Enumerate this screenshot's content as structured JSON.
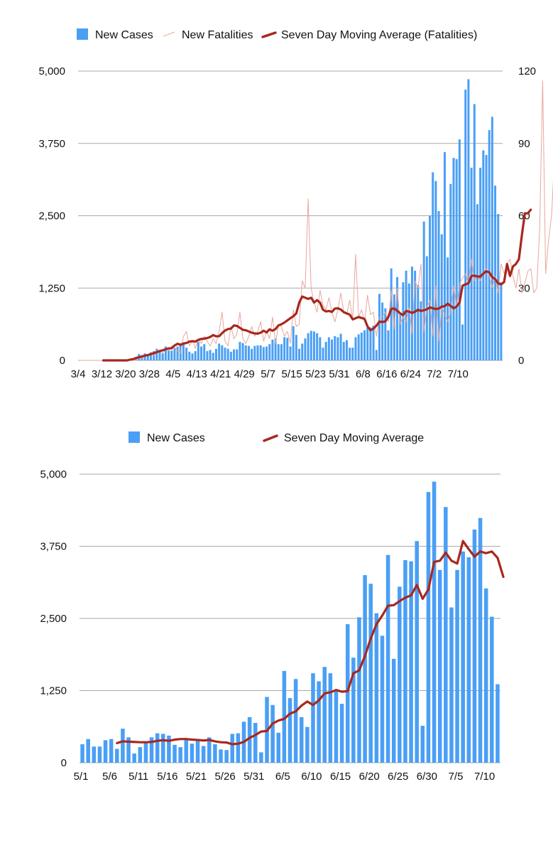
{
  "chart_data": [
    {
      "type": "bar",
      "title": "",
      "xlabel": "",
      "ylabel": "",
      "y2label": "",
      "grid": true,
      "legend": {
        "placement": "top",
        "entries": [
          {
            "label": "New Cases",
            "kind": "bar",
            "color": "#4a9ff5"
          },
          {
            "label": "New Fatalities",
            "kind": "thin-line",
            "color": "#e8a79c"
          },
          {
            "label": "Seven Day Moving Average (Fatalities)",
            "kind": "thick-line",
            "color": "#a8271e"
          }
        ]
      },
      "x_start": "3/4",
      "x_tick_labels": [
        "3/4",
        "3/12",
        "3/20",
        "3/28",
        "4/5",
        "4/13",
        "4/21",
        "4/29",
        "5/7",
        "5/15",
        "5/23",
        "5/31",
        "6/8",
        "6/16",
        "6/24",
        "7/2",
        "7/10"
      ],
      "ylim": [
        0,
        5000
      ],
      "y_ticks": [
        "0",
        "1,250",
        "2,500",
        "3,750",
        "5,000"
      ],
      "y2lim": [
        0,
        120
      ],
      "y2_ticks": [
        "0",
        "30",
        "60",
        "90",
        "120"
      ],
      "series": [
        {
          "name": "New Cases",
          "axis": "left",
          "color": "#4a9ff5",
          "values": [
            0,
            0,
            0,
            0,
            0,
            0,
            0,
            0,
            0,
            0,
            0,
            0,
            0,
            0,
            0,
            0,
            10,
            20,
            40,
            50,
            110,
            90,
            120,
            100,
            140,
            160,
            200,
            150,
            120,
            240,
            180,
            170,
            220,
            240,
            260,
            300,
            220,
            150,
            120,
            160,
            320,
            240,
            280,
            160,
            180,
            130,
            200,
            290,
            260,
            220,
            200,
            150,
            190,
            190,
            320,
            300,
            260,
            250,
            200,
            250,
            260,
            260,
            230,
            240,
            280,
            360,
            380,
            280,
            280,
            400,
            390,
            240,
            590,
            440,
            200,
            290,
            380,
            470,
            510,
            500,
            470,
            400,
            220,
            320,
            400,
            360,
            420,
            400,
            460,
            320,
            350,
            220,
            220,
            400,
            450,
            480,
            520,
            570,
            570,
            600,
            180,
            1150,
            1000,
            900,
            520,
            1590,
            1140,
            1440,
            790,
            1350,
            1550,
            1330,
            1620,
            1550,
            1300,
            1020,
            2400,
            1800,
            2500,
            3250,
            3100,
            2580,
            2180,
            3600,
            1780,
            3050,
            3500,
            3480,
            3820,
            620,
            4680,
            4860,
            3330,
            4430,
            2700,
            3330,
            3630,
            3550,
            3980,
            4210,
            3020,
            2530,
            1350
          ]
        },
        {
          "name": "New Fatalities",
          "axis": "right",
          "color": "#e8a79c",
          "values": [
            0,
            0,
            0,
            0,
            0,
            0,
            0,
            0,
            0,
            0,
            0,
            0,
            0,
            0,
            0,
            0,
            0,
            0,
            0,
            0,
            1,
            1,
            2,
            2,
            3,
            2,
            3,
            4,
            3,
            5,
            4,
            6,
            5,
            4,
            3,
            10,
            12,
            6,
            8,
            5,
            9,
            7,
            10,
            8,
            6,
            9,
            7,
            12,
            20,
            8,
            6,
            14,
            9,
            11,
            20,
            9,
            7,
            10,
            14,
            10,
            12,
            16,
            8,
            12,
            9,
            18,
            7,
            15,
            14,
            10,
            12,
            7,
            21,
            14,
            15,
            33,
            30,
            67,
            30,
            24,
            20,
            29,
            23,
            21,
            26,
            20,
            16,
            21,
            28,
            20,
            19,
            25,
            17,
            44,
            18,
            21,
            16,
            27,
            19,
            20,
            10,
            18,
            18,
            20,
            16,
            29,
            13,
            30,
            15,
            18,
            16,
            22,
            11,
            33,
            30,
            40,
            12,
            22,
            25,
            10,
            31,
            8,
            22,
            19,
            16,
            20,
            31,
            22,
            32,
            34,
            36,
            32,
            42,
            33,
            35,
            33,
            36,
            38,
            35,
            30,
            35,
            28,
            40,
            36,
            40,
            42,
            35,
            30,
            38,
            28,
            32,
            37,
            38,
            28,
            30,
            55,
            116,
            36,
            50,
            60,
            85,
            60
          ]
        },
        {
          "name": "Seven Day Moving Average (Fatalities)",
          "axis": "right",
          "color": "#a8271e",
          "values": [
            null,
            null,
            null,
            null,
            null,
            null,
            null,
            null,
            0,
            0,
            0,
            0,
            0,
            0,
            0,
            0,
            0,
            0.3,
            0.5,
            1,
            1.3,
            1.6,
            2,
            2.2,
            2.6,
            3,
            3.4,
            3.9,
            4.2,
            4.6,
            5,
            5,
            6.2,
            6.9,
            6.5,
            7,
            7.2,
            7.8,
            8,
            7.8,
            8.5,
            8.9,
            9,
            9.3,
            9.7,
            10.5,
            10,
            10,
            11.3,
            12.4,
            13,
            13.2,
            14.5,
            14.3,
            13.5,
            12.7,
            12.5,
            12,
            11.5,
            11.2,
            11.1,
            11.5,
            12.3,
            11.6,
            12.9,
            12.3,
            13,
            14.5,
            15,
            15.7,
            16.6,
            17.5,
            18.3,
            19.5,
            24,
            26.5,
            26,
            25.5,
            26,
            24,
            25,
            24,
            21,
            20.3,
            20.5,
            20.1,
            21.5,
            21.6,
            21.1,
            20,
            19.5,
            19,
            17,
            17.5,
            18,
            17.6,
            17.2,
            14.1,
            12.5,
            13.2,
            14.4,
            16.1,
            15.9,
            16.2,
            18,
            21.4,
            21.5,
            20.6,
            19.5,
            18.8,
            20.5,
            20.2,
            19.7,
            20.2,
            21,
            20.5,
            20.8,
            21.2,
            22,
            21.6,
            21.3,
            21.5,
            22.3,
            22.5,
            23.5,
            22.6,
            21.6,
            22.3,
            24,
            31,
            31.5,
            32,
            35,
            35.2,
            34.8,
            34.8,
            36,
            37,
            36.5,
            34.6,
            33.7,
            32,
            31.5,
            32.5,
            40,
            35,
            39,
            40,
            42,
            52,
            61,
            61,
            62.5
          ]
        }
      ]
    },
    {
      "type": "bar",
      "title": "",
      "xlabel": "",
      "ylabel": "",
      "grid": true,
      "legend": {
        "placement": "top",
        "entries": [
          {
            "label": "New Cases",
            "kind": "bar",
            "color": "#4a9ff5"
          },
          {
            "label": "Seven Day Moving Average",
            "kind": "thick-line",
            "color": "#a8271e"
          }
        ]
      },
      "x_start": "5/1",
      "x_tick_labels": [
        "5/1",
        "5/6",
        "5/11",
        "5/16",
        "5/21",
        "5/26",
        "5/31",
        "6/5",
        "6/10",
        "6/15",
        "6/20",
        "6/25",
        "6/30",
        "7/5",
        "7/10"
      ],
      "ylim": [
        0,
        5000
      ],
      "y_ticks": [
        "0",
        "1,250",
        "2,500",
        "3,750",
        "5,000"
      ],
      "series": [
        {
          "name": "New Cases",
          "color": "#4a9ff5",
          "values": [
            320,
            410,
            280,
            280,
            390,
            410,
            240,
            590,
            440,
            160,
            270,
            370,
            440,
            510,
            500,
            470,
            310,
            270,
            410,
            330,
            380,
            290,
            440,
            320,
            230,
            220,
            500,
            510,
            710,
            790,
            690,
            180,
            1140,
            1000,
            520,
            1590,
            1120,
            1450,
            790,
            620,
            1550,
            1410,
            1660,
            1550,
            1250,
            1020,
            2400,
            1820,
            2520,
            3250,
            3100,
            2590,
            2200,
            3600,
            1800,
            3050,
            3510,
            3490,
            3840,
            640,
            4690,
            4870,
            3340,
            4430,
            2690,
            3340,
            3660,
            3560,
            4040,
            4240,
            3020,
            2530,
            1360
          ]
        },
        {
          "name": "Seven Day Moving Average",
          "color": "#a8271e",
          "values": [
            null,
            null,
            null,
            null,
            null,
            null,
            340,
            370,
            365,
            360,
            355,
            355,
            360,
            380,
            390,
            380,
            400,
            410,
            410,
            400,
            395,
            385,
            395,
            370,
            355,
            350,
            320,
            330,
            360,
            430,
            480,
            540,
            550,
            680,
            730,
            760,
            850,
            890,
            990,
            1060,
            1000,
            1080,
            1200,
            1220,
            1260,
            1230,
            1240,
            1550,
            1600,
            1850,
            2150,
            2400,
            2550,
            2720,
            2730,
            2800,
            2860,
            2900,
            3080,
            2840,
            3000,
            3480,
            3500,
            3640,
            3500,
            3450,
            3840,
            3700,
            3570,
            3660,
            3630,
            3660,
            3550,
            3220
          ]
        }
      ]
    }
  ]
}
